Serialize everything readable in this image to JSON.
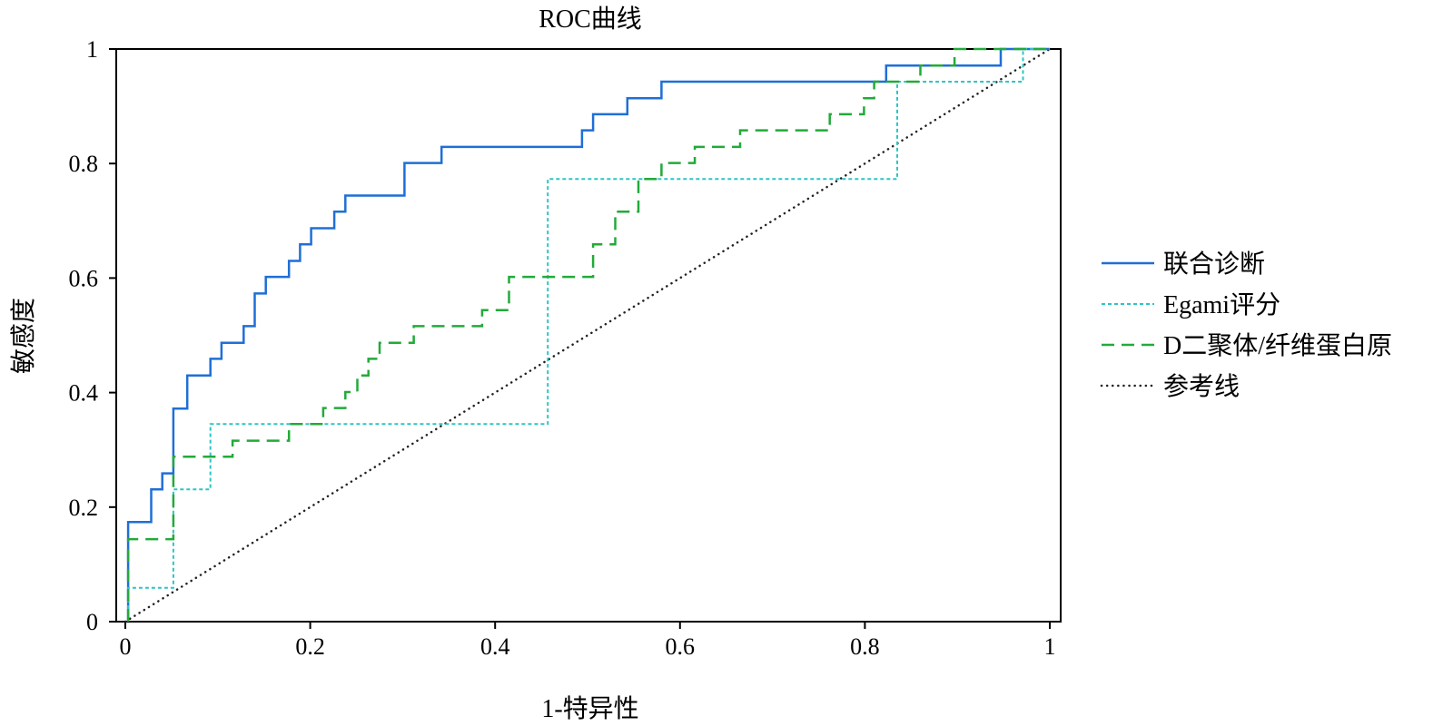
{
  "chart_data": {
    "type": "line",
    "title": "ROC曲线",
    "xlabel": "1-特异性",
    "ylabel": "敏感度",
    "xlim": [
      0,
      1
    ],
    "ylim": [
      0,
      1
    ],
    "xticks": [
      0,
      0.2,
      0.4,
      0.6,
      0.8,
      1
    ],
    "yticks": [
      0,
      0.2,
      0.4,
      0.6,
      0.8,
      1
    ],
    "xtick_labels": [
      "0",
      "0.2",
      "0.4",
      "0.6",
      "0.8",
      "1"
    ],
    "ytick_labels": [
      "0",
      "0.2",
      "0.4",
      "0.6",
      "0.8",
      "1"
    ],
    "grid": false,
    "legend_position": "right",
    "series": [
      {
        "name": "联合诊断",
        "color": "#1f6fd6",
        "style": "solid",
        "points": [
          [
            0.003,
            0
          ],
          [
            0.003,
            0.174
          ],
          [
            0.028,
            0.174
          ],
          [
            0.028,
            0.231
          ],
          [
            0.04,
            0.231
          ],
          [
            0.04,
            0.259
          ],
          [
            0.052,
            0.259
          ],
          [
            0.052,
            0.372
          ],
          [
            0.067,
            0.372
          ],
          [
            0.067,
            0.43
          ],
          [
            0.092,
            0.43
          ],
          [
            0.092,
            0.459
          ],
          [
            0.104,
            0.459
          ],
          [
            0.104,
            0.487
          ],
          [
            0.128,
            0.487
          ],
          [
            0.128,
            0.516
          ],
          [
            0.14,
            0.516
          ],
          [
            0.14,
            0.573
          ],
          [
            0.152,
            0.573
          ],
          [
            0.152,
            0.602
          ],
          [
            0.177,
            0.602
          ],
          [
            0.177,
            0.63
          ],
          [
            0.189,
            0.63
          ],
          [
            0.189,
            0.659
          ],
          [
            0.201,
            0.659
          ],
          [
            0.201,
            0.687
          ],
          [
            0.226,
            0.687
          ],
          [
            0.226,
            0.716
          ],
          [
            0.238,
            0.716
          ],
          [
            0.238,
            0.744
          ],
          [
            0.302,
            0.744
          ],
          [
            0.302,
            0.801
          ],
          [
            0.342,
            0.801
          ],
          [
            0.342,
            0.829
          ],
          [
            0.494,
            0.829
          ],
          [
            0.494,
            0.858
          ],
          [
            0.506,
            0.858
          ],
          [
            0.506,
            0.886
          ],
          [
            0.543,
            0.886
          ],
          [
            0.543,
            0.914
          ],
          [
            0.58,
            0.914
          ],
          [
            0.58,
            0.943
          ],
          [
            0.823,
            0.943
          ],
          [
            0.823,
            0.971
          ],
          [
            0.947,
            0.971
          ],
          [
            0.947,
            1
          ],
          [
            1,
            1
          ]
        ]
      },
      {
        "name": "Egami评分",
        "color": "#2ec4c4",
        "style": "dotted",
        "points": [
          [
            0.003,
            0
          ],
          [
            0.003,
            0.059
          ],
          [
            0.052,
            0.059
          ],
          [
            0.052,
            0.231
          ],
          [
            0.092,
            0.231
          ],
          [
            0.092,
            0.345
          ],
          [
            0.457,
            0.345
          ],
          [
            0.457,
            0.773
          ],
          [
            0.835,
            0.773
          ],
          [
            0.835,
            0.943
          ],
          [
            0.971,
            0.943
          ],
          [
            0.971,
            1
          ],
          [
            1,
            1
          ]
        ]
      },
      {
        "name": "D二聚体/纤维蛋白原",
        "color": "#22aa3a",
        "style": "dashed",
        "points": [
          [
            0.003,
            0
          ],
          [
            0.003,
            0.144
          ],
          [
            0.052,
            0.144
          ],
          [
            0.052,
            0.288
          ],
          [
            0.116,
            0.288
          ],
          [
            0.116,
            0.316
          ],
          [
            0.177,
            0.316
          ],
          [
            0.177,
            0.345
          ],
          [
            0.214,
            0.345
          ],
          [
            0.214,
            0.373
          ],
          [
            0.238,
            0.373
          ],
          [
            0.238,
            0.401
          ],
          [
            0.251,
            0.401
          ],
          [
            0.251,
            0.43
          ],
          [
            0.263,
            0.43
          ],
          [
            0.263,
            0.459
          ],
          [
            0.275,
            0.459
          ],
          [
            0.275,
            0.487
          ],
          [
            0.312,
            0.487
          ],
          [
            0.312,
            0.516
          ],
          [
            0.386,
            0.516
          ],
          [
            0.386,
            0.544
          ],
          [
            0.415,
            0.544
          ],
          [
            0.415,
            0.602
          ],
          [
            0.506,
            0.602
          ],
          [
            0.506,
            0.659
          ],
          [
            0.53,
            0.659
          ],
          [
            0.53,
            0.716
          ],
          [
            0.555,
            0.716
          ],
          [
            0.555,
            0.773
          ],
          [
            0.58,
            0.773
          ],
          [
            0.58,
            0.801
          ],
          [
            0.616,
            0.801
          ],
          [
            0.616,
            0.829
          ],
          [
            0.665,
            0.829
          ],
          [
            0.665,
            0.858
          ],
          [
            0.762,
            0.858
          ],
          [
            0.762,
            0.886
          ],
          [
            0.799,
            0.886
          ],
          [
            0.799,
            0.914
          ],
          [
            0.81,
            0.914
          ],
          [
            0.81,
            0.943
          ],
          [
            0.86,
            0.943
          ],
          [
            0.86,
            0.971
          ],
          [
            0.897,
            0.971
          ],
          [
            0.897,
            1
          ],
          [
            1,
            1
          ]
        ]
      },
      {
        "name": "参考线",
        "color": "#222222",
        "style": "densedot",
        "points": [
          [
            0,
            0
          ],
          [
            1,
            1
          ]
        ]
      }
    ]
  }
}
